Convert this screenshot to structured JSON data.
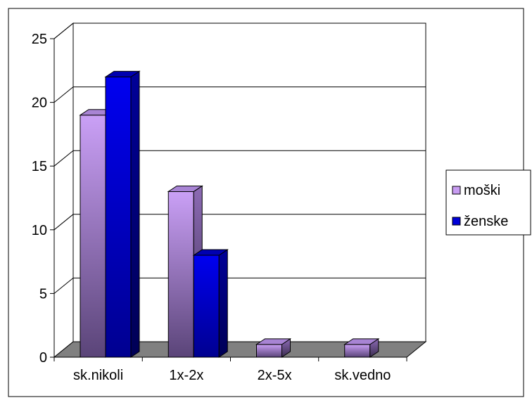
{
  "chart_data": {
    "type": "bar",
    "categories": [
      "sk.nikoli",
      "1x-2x",
      "2x-5x",
      "sk.vedno"
    ],
    "series": [
      {
        "name": "moški",
        "values": [
          19,
          13,
          1,
          1
        ],
        "color": "#c89cf2"
      },
      {
        "name": "ženske",
        "values": [
          22,
          8,
          0,
          0
        ],
        "color": "#0000d8"
      }
    ],
    "ylim": [
      0,
      25
    ],
    "yticks": [
      0,
      5,
      10,
      15,
      20,
      25
    ],
    "grid": true,
    "legend": "right",
    "three_d": true,
    "title": "",
    "xlabel": "",
    "ylabel": ""
  }
}
